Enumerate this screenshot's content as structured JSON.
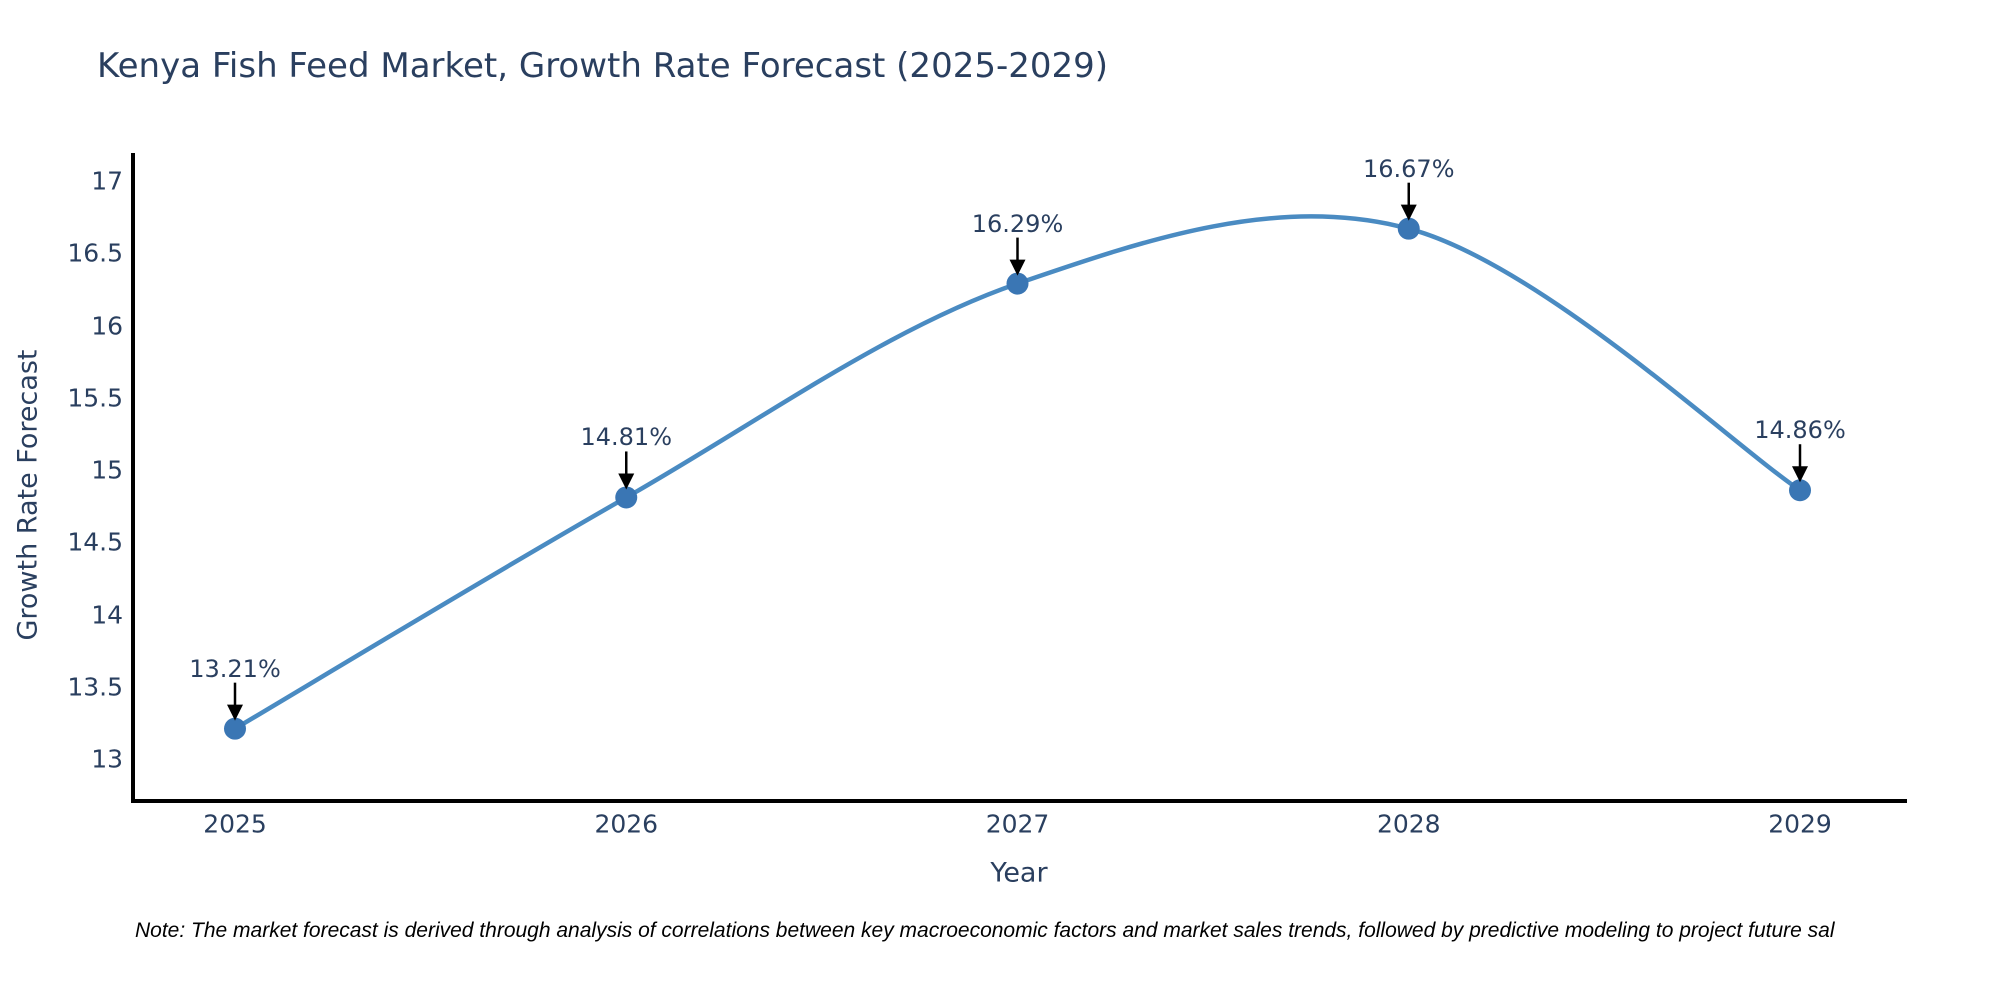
{
  "page": {
    "background": "#ffffff"
  },
  "chart": {
    "note": "Note: The market forecast is derived through analysis of correlations between key macroeconomic factors and market sales trends, followed by predictive modeling to project future sal",
    "colors": {
      "line": "#4a8bc2",
      "marker": "#3a76b4",
      "axis_line": "#000000",
      "arrow": "#000000",
      "label_text": "#2a3f5f",
      "title_text": "#2a3f5f",
      "note_text": "#000000"
    }
  },
  "chart_data": {
    "type": "line",
    "title": "Kenya Fish Feed Market, Growth Rate Forecast (2025-2029)",
    "xlabel": "Year",
    "ylabel": "Growth Rate Forecast",
    "categories": [
      "2025",
      "2026",
      "2027",
      "2028",
      "2029"
    ],
    "x": [
      2025,
      2026,
      2027,
      2028,
      2029
    ],
    "series": [
      {
        "name": "Growth Rate Forecast",
        "values": [
          13.21,
          14.81,
          16.29,
          16.67,
          14.86
        ]
      }
    ],
    "point_labels": [
      "13.21%",
      "14.81%",
      "16.29%",
      "16.67%",
      "14.86%"
    ],
    "ytick_labels": [
      "13",
      "13.5",
      "14",
      "14.5",
      "15",
      "15.5",
      "16",
      "16.5",
      "17"
    ],
    "yticks": [
      13,
      13.5,
      14,
      14.5,
      15,
      15.5,
      16,
      16.5,
      17
    ],
    "ylim": [
      12.7,
      17.25
    ],
    "grid": false,
    "line_shape": "spline",
    "legend_position": "none",
    "annotations_style": "value labels with down arrows above each point"
  }
}
